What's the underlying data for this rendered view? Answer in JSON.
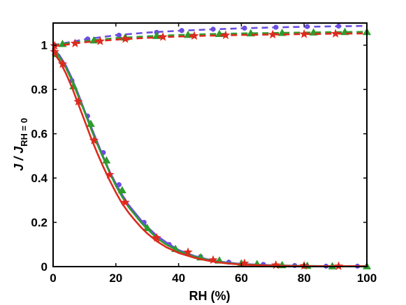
{
  "chart_data": {
    "type": "line",
    "xlabel": "RH (%)",
    "ylabel": {
      "main": "J / J",
      "subscript": "RH = 0"
    },
    "xlim": [
      0,
      100
    ],
    "ylim": [
      0,
      1.1
    ],
    "xticks": [
      0,
      20,
      40,
      60,
      80,
      100
    ],
    "yticks": [
      0,
      0.2,
      0.4,
      0.6,
      0.8,
      1
    ],
    "xtick_labels": [
      "0",
      "20",
      "40",
      "60",
      "80",
      "100"
    ],
    "ytick_labels": [
      "0",
      "0.2",
      "0.4",
      "0.6",
      "0.8",
      "1"
    ],
    "grid": false,
    "legend": "none",
    "series": [
      {
        "color": "#6a4ee0",
        "marker": "circle",
        "line_style": "dashed",
        "line": {
          "x": [
            0,
            10,
            20,
            30,
            40,
            50,
            60,
            70,
            80,
            90,
            100
          ],
          "y": [
            1.0,
            1.026,
            1.045,
            1.057,
            1.065,
            1.071,
            1.076,
            1.08,
            1.083,
            1.085,
            1.087
          ]
        },
        "points": {
          "x": [
            0.5,
            11,
            21,
            33,
            41,
            51,
            61,
            71,
            81,
            91
          ],
          "y": [
            1.0,
            1.028,
            1.045,
            1.058,
            1.066,
            1.072,
            1.077,
            1.081,
            1.084,
            1.086
          ]
        }
      },
      {
        "color": "#2e9b2e",
        "marker": "triangle",
        "line_style": "dashed",
        "line": {
          "x": [
            0,
            10,
            20,
            30,
            40,
            50,
            60,
            70,
            80,
            90,
            100
          ],
          "y": [
            1.0,
            1.018,
            1.032,
            1.04,
            1.046,
            1.05,
            1.053,
            1.055,
            1.057,
            1.059,
            1.06
          ]
        },
        "points": {
          "x": [
            3,
            13,
            23,
            33,
            43,
            53,
            63,
            73,
            83,
            93,
            100
          ],
          "y": [
            1.006,
            1.022,
            1.035,
            1.042,
            1.047,
            1.051,
            1.054,
            1.056,
            1.058,
            1.06,
            1.06
          ]
        }
      },
      {
        "color": "#dd2a1e",
        "marker": "star",
        "line_style": "dashed",
        "line": {
          "x": [
            0,
            10,
            20,
            30,
            40,
            50,
            60,
            70,
            80,
            90,
            100
          ],
          "y": [
            0.995,
            1.013,
            1.025,
            1.033,
            1.039,
            1.043,
            1.046,
            1.048,
            1.05,
            1.052,
            1.053
          ]
        },
        "points": {
          "x": [
            0.5,
            7,
            15,
            23,
            35,
            45,
            55,
            70,
            80,
            90
          ],
          "y": [
            0.997,
            1.008,
            1.018,
            1.028,
            1.037,
            1.042,
            1.045,
            1.048,
            1.05,
            1.052
          ]
        }
      },
      {
        "color": "#6a4ee0",
        "marker": "circle",
        "line_style": "solid",
        "line": {
          "x": [
            0,
            2,
            4,
            6,
            8,
            10,
            12,
            14,
            16,
            18,
            20,
            22,
            24,
            26,
            28,
            30,
            33,
            36,
            40,
            45,
            50,
            55,
            60,
            70,
            80,
            90,
            100
          ],
          "y": [
            0.985,
            0.955,
            0.91,
            0.85,
            0.78,
            0.705,
            0.635,
            0.565,
            0.495,
            0.43,
            0.375,
            0.325,
            0.28,
            0.245,
            0.21,
            0.18,
            0.14,
            0.11,
            0.075,
            0.048,
            0.03,
            0.019,
            0.012,
            0.006,
            0.003,
            0.002,
            0.002
          ]
        },
        "points": {
          "x": [
            6,
            11,
            16,
            21,
            29,
            37,
            47,
            56,
            67,
            77,
            87,
            97
          ],
          "y": [
            0.84,
            0.68,
            0.515,
            0.37,
            0.2,
            0.1,
            0.045,
            0.02,
            0.01,
            0.005,
            0.002,
            0.002
          ]
        }
      },
      {
        "color": "#2e9b2e",
        "marker": "triangle",
        "line_style": "solid",
        "line": {
          "x": [
            0,
            2,
            4,
            6,
            8,
            10,
            12,
            14,
            16,
            18,
            20,
            22,
            24,
            26,
            28,
            30,
            33,
            36,
            40,
            45,
            50,
            55,
            60,
            70,
            80,
            90,
            100
          ],
          "y": [
            0.975,
            0.945,
            0.9,
            0.84,
            0.77,
            0.7,
            0.625,
            0.555,
            0.49,
            0.425,
            0.365,
            0.315,
            0.27,
            0.235,
            0.2,
            0.17,
            0.13,
            0.1,
            0.07,
            0.045,
            0.028,
            0.017,
            0.01,
            0.005,
            0.003,
            0.002,
            0.002
          ]
        },
        "points": {
          "x": [
            1,
            6.5,
            12,
            17,
            22,
            30,
            39,
            47,
            53,
            60,
            65,
            73,
            81,
            89,
            100
          ],
          "y": [
            0.96,
            0.815,
            0.645,
            0.48,
            0.345,
            0.175,
            0.08,
            0.042,
            0.028,
            0.015,
            0.012,
            0.007,
            0.004,
            0.002,
            0.002
          ]
        }
      },
      {
        "color": "#dd2a1e",
        "marker": "star",
        "line_style": "solid",
        "line": {
          "x": [
            0,
            2,
            4,
            6,
            8,
            10,
            12,
            14,
            16,
            18,
            20,
            22,
            24,
            26,
            28,
            30,
            33,
            36,
            40,
            45,
            50,
            55,
            60,
            70,
            80,
            90,
            100
          ],
          "y": [
            0.97,
            0.93,
            0.875,
            0.81,
            0.735,
            0.66,
            0.585,
            0.515,
            0.45,
            0.39,
            0.335,
            0.285,
            0.245,
            0.21,
            0.178,
            0.15,
            0.115,
            0.088,
            0.062,
            0.04,
            0.025,
            0.015,
            0.009,
            0.004,
            0.002,
            0.002,
            0.002
          ]
        },
        "points": {
          "x": [
            0.5,
            3,
            8,
            13,
            18,
            23,
            33,
            43,
            51,
            61,
            71,
            80,
            91
          ],
          "y": [
            0.97,
            0.915,
            0.745,
            0.57,
            0.415,
            0.29,
            0.13,
            0.065,
            0.03,
            0.015,
            0.007,
            0.004,
            0.002
          ]
        }
      }
    ]
  }
}
